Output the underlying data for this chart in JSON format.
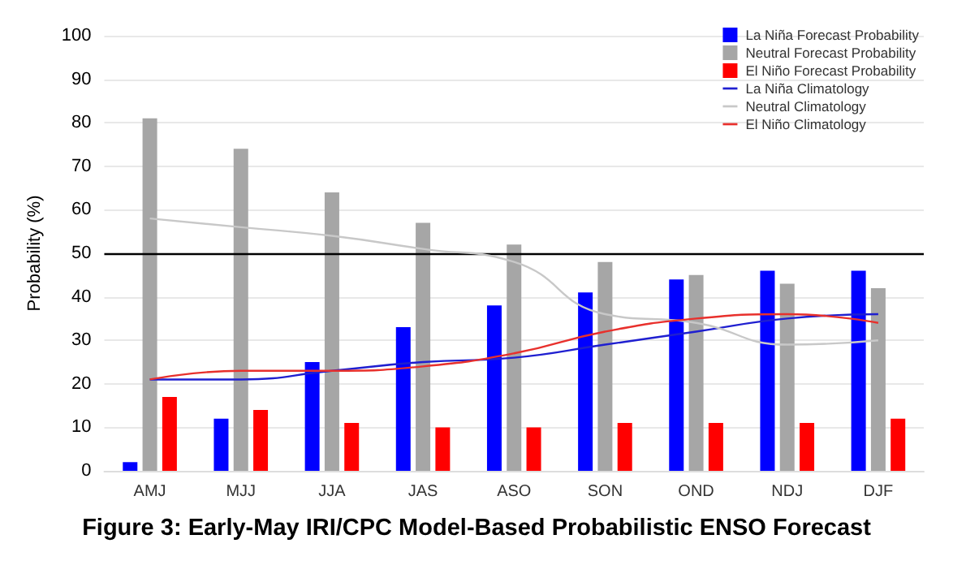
{
  "chart_data": {
    "type": "bar",
    "title": "Figure 3: Early-May IRI/CPC Model-Based Probabilistic ENSO Forecast",
    "ylabel": "Probability (%)",
    "categories": [
      "AMJ",
      "MJJ",
      "JJA",
      "JAS",
      "ASO",
      "SON",
      "OND",
      "NDJ",
      "DJF"
    ],
    "series": [
      {
        "name": "La Niña Forecast Probability",
        "color": "#0000ff",
        "values": [
          2,
          12,
          25,
          33,
          38,
          41,
          44,
          46,
          46
        ]
      },
      {
        "name": "Neutral Forecast Probability",
        "color": "#a6a6a6",
        "values": [
          81,
          74,
          64,
          57,
          52,
          48,
          45,
          43,
          42
        ]
      },
      {
        "name": "El Niño Forecast Probability",
        "color": "#ff0000",
        "values": [
          17,
          14,
          11,
          10,
          10,
          11,
          11,
          11,
          12
        ]
      },
      {
        "name": "La Niña Climatology",
        "type": "line",
        "color": "#1f1fd0",
        "values": [
          21,
          21,
          23,
          25,
          26,
          29,
          32,
          35,
          36
        ]
      },
      {
        "name": "Neutral Climatology",
        "type": "line",
        "color": "#c8c8c8",
        "values": [
          58,
          56,
          54,
          51,
          48,
          36,
          34,
          29,
          30
        ]
      },
      {
        "name": "El Niño Climatology",
        "type": "line",
        "color": "#e8302c",
        "values": [
          21,
          23,
          23,
          24,
          27,
          32,
          35,
          36,
          34
        ]
      }
    ],
    "ylim": [
      0,
      100
    ],
    "yticks": [
      0,
      10,
      20,
      30,
      40,
      50,
      60,
      70,
      80,
      90,
      100
    ],
    "grid": "y",
    "legend": "top right",
    "marker": "none",
    "line_style": "solid",
    "ref_lines": [
      {
        "axis": "y",
        "value": 50,
        "color": "#000000",
        "line_style": "solid"
      }
    ]
  }
}
